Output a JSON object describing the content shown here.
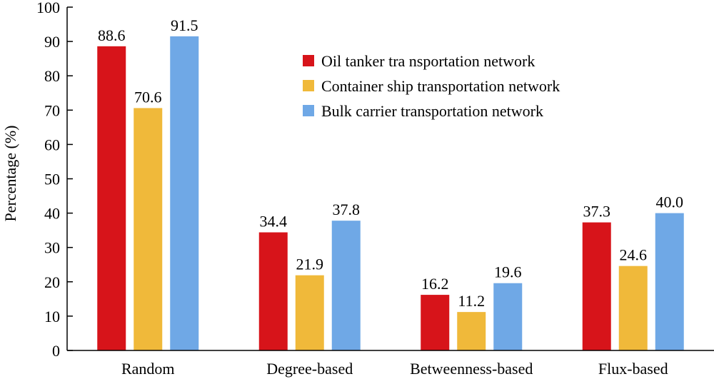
{
  "chart_data": {
    "type": "bar",
    "title": "",
    "xlabel": "",
    "ylabel": "Percentage (%)",
    "ylim": [
      0,
      100
    ],
    "yticks": [
      0,
      10,
      20,
      30,
      40,
      50,
      60,
      70,
      80,
      90,
      100
    ],
    "grid": false,
    "legend_position": "top-right",
    "categories": [
      "Random",
      "Degree-based",
      "Betweenness-based",
      "Flux-based"
    ],
    "series": [
      {
        "name": "Oil tanker tra nsportation network",
        "color": "#d7141a",
        "values": [
          88.6,
          34.4,
          16.2,
          37.3
        ],
        "labels": [
          "88.6",
          "34.4",
          "16.2",
          "37.3"
        ]
      },
      {
        "name": "Container ship transportation network",
        "color": "#f0b93a",
        "values": [
          70.6,
          21.9,
          11.2,
          24.6
        ],
        "labels": [
          "70.6",
          "21.9",
          "11.2",
          "24.6"
        ]
      },
      {
        "name": "Bulk carrier transportation network",
        "color": "#6fa8e6",
        "values": [
          91.5,
          37.8,
          19.6,
          40.0
        ],
        "labels": [
          "91.5",
          "37.8",
          "19.6",
          "40.0"
        ]
      }
    ]
  }
}
